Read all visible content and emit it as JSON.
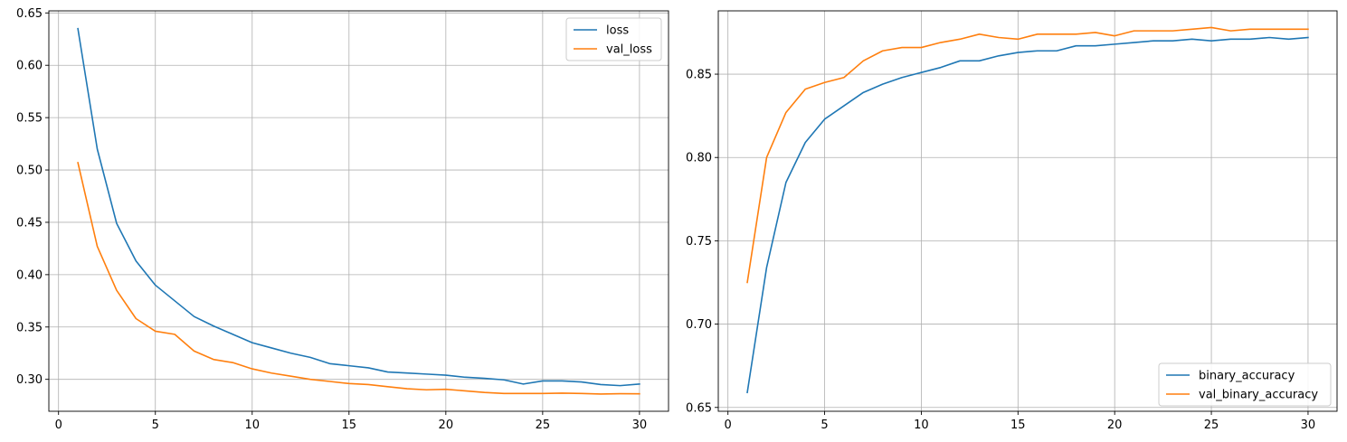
{
  "chart_data": [
    {
      "type": "line",
      "title": "",
      "xlabel": "",
      "ylabel": "",
      "grid": true,
      "legend_position": "upper right",
      "xlim": [
        -0.5,
        31.5
      ],
      "ylim": [
        0.2695,
        0.652
      ],
      "x_ticks": [
        0,
        5,
        10,
        15,
        20,
        25,
        30
      ],
      "y_ticks": [
        0.3,
        0.35,
        0.4,
        0.45,
        0.5,
        0.55,
        0.6,
        0.65
      ],
      "y_tick_labels": [
        "0.30",
        "0.35",
        "0.40",
        "0.45",
        "0.50",
        "0.55",
        "0.60",
        "0.65"
      ],
      "x": [
        1,
        2,
        3,
        4,
        5,
        6,
        7,
        8,
        9,
        10,
        11,
        12,
        13,
        14,
        15,
        16,
        17,
        18,
        19,
        20,
        21,
        22,
        23,
        24,
        25,
        26,
        27,
        28,
        29,
        30
      ],
      "series": [
        {
          "name": "loss",
          "color": "#1f77b4",
          "values": [
            0.635,
            0.52,
            0.449,
            0.413,
            0.39,
            0.375,
            0.36,
            0.351,
            0.343,
            0.335,
            0.33,
            0.325,
            0.321,
            0.315,
            0.313,
            0.311,
            0.307,
            0.306,
            0.305,
            0.304,
            0.302,
            0.301,
            0.2995,
            0.2955,
            0.2985,
            0.2985,
            0.2975,
            0.295,
            0.294,
            0.2955
          ]
        },
        {
          "name": "val_loss",
          "color": "#ff7f0e",
          "values": [
            0.507,
            0.427,
            0.385,
            0.358,
            0.346,
            0.343,
            0.327,
            0.319,
            0.316,
            0.31,
            0.306,
            0.303,
            0.3,
            0.298,
            0.296,
            0.295,
            0.293,
            0.291,
            0.29,
            0.2905,
            0.289,
            0.2875,
            0.2865,
            0.2865,
            0.2865,
            0.2868,
            0.2865,
            0.286,
            0.2863,
            0.2862
          ]
        }
      ]
    },
    {
      "type": "line",
      "title": "",
      "xlabel": "",
      "ylabel": "",
      "grid": true,
      "legend_position": "lower right",
      "xlim": [
        -0.5,
        31.5
      ],
      "ylim": [
        0.6477,
        0.888
      ],
      "x_ticks": [
        0,
        5,
        10,
        15,
        20,
        25,
        30
      ],
      "y_ticks": [
        0.65,
        0.7,
        0.75,
        0.8,
        0.85
      ],
      "y_tick_labels": [
        "0.65",
        "0.70",
        "0.75",
        "0.80",
        "0.85"
      ],
      "x": [
        1,
        2,
        3,
        4,
        5,
        6,
        7,
        8,
        9,
        10,
        11,
        12,
        13,
        14,
        15,
        16,
        17,
        18,
        19,
        20,
        21,
        22,
        23,
        24,
        25,
        26,
        27,
        28,
        29,
        30
      ],
      "series": [
        {
          "name": "binary_accuracy",
          "color": "#1f77b4",
          "values": [
            0.659,
            0.734,
            0.785,
            0.809,
            0.823,
            0.831,
            0.839,
            0.844,
            0.848,
            0.851,
            0.854,
            0.858,
            0.858,
            0.861,
            0.863,
            0.864,
            0.864,
            0.867,
            0.867,
            0.868,
            0.869,
            0.87,
            0.87,
            0.871,
            0.87,
            0.871,
            0.871,
            0.872,
            0.871,
            0.872
          ]
        },
        {
          "name": "val_binary_accuracy",
          "color": "#ff7f0e",
          "values": [
            0.725,
            0.8,
            0.827,
            0.841,
            0.845,
            0.848,
            0.858,
            0.864,
            0.866,
            0.866,
            0.869,
            0.871,
            0.874,
            0.872,
            0.871,
            0.874,
            0.874,
            0.874,
            0.875,
            0.873,
            0.876,
            0.876,
            0.876,
            0.877,
            0.878,
            0.876,
            0.877,
            0.877,
            0.877,
            0.877
          ]
        }
      ]
    }
  ]
}
